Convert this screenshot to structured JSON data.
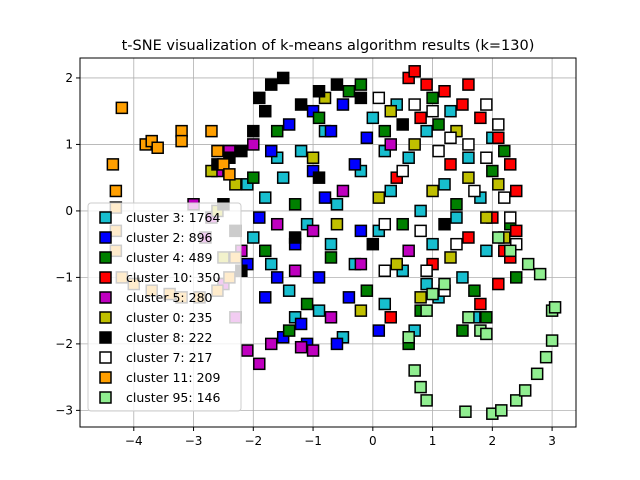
{
  "chart_data": {
    "type": "scatter",
    "title": "t-SNE visualization of k-means algorithm results (k=130)",
    "xlabel": "",
    "ylabel": "",
    "xlim": [
      -4.9,
      3.4
    ],
    "ylim": [
      -3.25,
      2.3
    ],
    "xticks": [
      -4,
      -3,
      -2,
      -1,
      0,
      1,
      2,
      3
    ],
    "yticks": [
      -3,
      -2,
      -1,
      0,
      1,
      2
    ],
    "grid": true,
    "marker": "square",
    "legend_position": "lower-left",
    "series": [
      {
        "name": "cluster 3: 1764",
        "color": "#17becf",
        "points": [
          [
            -2.0,
            -0.4
          ],
          [
            -1.8,
            0.2
          ],
          [
            -1.7,
            -0.8
          ],
          [
            -1.5,
            0.5
          ],
          [
            -1.4,
            -1.2
          ],
          [
            -1.2,
            0.9
          ],
          [
            -1.1,
            -0.2
          ],
          [
            -0.9,
            -1.5
          ],
          [
            -0.8,
            1.2
          ],
          [
            -0.6,
            0.1
          ],
          [
            -0.5,
            -1.9
          ],
          [
            -0.3,
            -0.8
          ],
          [
            -0.2,
            0.6
          ],
          [
            0.0,
            1.4
          ],
          [
            0.1,
            -0.3
          ],
          [
            0.2,
            -1.4
          ],
          [
            0.3,
            0.3
          ],
          [
            0.4,
            1.6
          ],
          [
            0.5,
            -0.9
          ],
          [
            0.6,
            0.8
          ],
          [
            0.7,
            -1.8
          ],
          [
            0.8,
            0.0
          ],
          [
            0.9,
            1.2
          ],
          [
            1.0,
            -0.5
          ],
          [
            1.1,
            -1.3
          ],
          [
            1.2,
            0.4
          ],
          [
            1.3,
            1.5
          ],
          [
            1.4,
            -0.1
          ],
          [
            1.5,
            -1.0
          ],
          [
            1.6,
            0.8
          ],
          [
            1.7,
            -1.6
          ],
          [
            1.8,
            0.2
          ],
          [
            1.9,
            -0.6
          ],
          [
            2.0,
            1.1
          ],
          [
            -1.3,
            -1.6
          ],
          [
            -1.6,
            0.8
          ],
          [
            -0.7,
            -0.5
          ],
          [
            0.2,
            0.9
          ],
          [
            0.9,
            -1.1
          ],
          [
            -2.1,
            0.4
          ]
        ]
      },
      {
        "name": "cluster 2: 896",
        "color": "#0000ff",
        "points": [
          [
            -1.9,
            -0.1
          ],
          [
            -1.7,
            0.9
          ],
          [
            -1.6,
            -1.0
          ],
          [
            -1.4,
            1.3
          ],
          [
            -1.3,
            -0.5
          ],
          [
            -1.2,
            -1.7
          ],
          [
            -1.0,
            1.5
          ],
          [
            -0.9,
            -1.0
          ],
          [
            -0.8,
            0.2
          ],
          [
            -0.6,
            -2.0
          ],
          [
            -0.5,
            1.6
          ],
          [
            -0.4,
            -1.3
          ],
          [
            -0.2,
            -0.3
          ],
          [
            -0.1,
            1.1
          ],
          [
            0.1,
            -1.8
          ],
          [
            -1.8,
            -1.3
          ],
          [
            -1.1,
            -2.0
          ],
          [
            -1.5,
            -1.9
          ],
          [
            -2.1,
            -0.8
          ],
          [
            -0.3,
            0.7
          ],
          [
            -0.7,
            1.2
          ],
          [
            -1.0,
            0.6
          ]
        ]
      },
      {
        "name": "cluster 4: 489",
        "color": "#008000",
        "points": [
          [
            -2.0,
            0.5
          ],
          [
            -1.8,
            -0.6
          ],
          [
            -1.6,
            1.2
          ],
          [
            -1.3,
            0.1
          ],
          [
            -1.1,
            -1.4
          ],
          [
            -0.9,
            1.4
          ],
          [
            -0.7,
            -0.7
          ],
          [
            -0.4,
            1.8
          ],
          [
            -0.1,
            -1.2
          ],
          [
            0.2,
            1.2
          ],
          [
            0.5,
            -0.2
          ],
          [
            0.8,
            -1.5
          ],
          [
            1.1,
            1.3
          ],
          [
            1.4,
            0.1
          ],
          [
            1.7,
            -1.2
          ],
          [
            2.0,
            0.6
          ],
          [
            2.3,
            -0.2
          ],
          [
            2.4,
            -1.0
          ],
          [
            1.9,
            -1.6
          ],
          [
            1.5,
            -1.8
          ],
          [
            0.6,
            -2.0
          ],
          [
            -0.2,
            1.9
          ],
          [
            1.0,
            1.7
          ],
          [
            2.2,
            0.9
          ],
          [
            -1.4,
            -1.8
          ]
        ]
      },
      {
        "name": "cluster 10: 350",
        "color": "#ff0000",
        "points": [
          [
            0.6,
            2.0
          ],
          [
            0.9,
            1.9
          ],
          [
            1.2,
            1.8
          ],
          [
            1.5,
            1.6
          ],
          [
            1.8,
            1.4
          ],
          [
            2.1,
            1.1
          ],
          [
            2.3,
            0.7
          ],
          [
            2.4,
            0.3
          ],
          [
            2.4,
            -0.3
          ],
          [
            2.3,
            -0.7
          ],
          [
            2.1,
            -1.1
          ],
          [
            1.8,
            -1.4
          ],
          [
            0.8,
            1.4
          ],
          [
            1.3,
            0.7
          ],
          [
            1.6,
            -0.4
          ],
          [
            2.0,
            -0.1
          ],
          [
            0.4,
            0.5
          ],
          [
            1.0,
            -0.8
          ],
          [
            0.7,
            2.1
          ],
          [
            1.6,
            1.9
          ],
          [
            2.2,
            -0.6
          ],
          [
            0.3,
            -1.6
          ]
        ]
      },
      {
        "name": "cluster 5: 280",
        "color": "#bf00bf",
        "points": [
          [
            -3.0,
            0.1
          ],
          [
            -2.8,
            -0.4
          ],
          [
            -2.6,
            0.6
          ],
          [
            -2.5,
            -1.1
          ],
          [
            -2.4,
            0.9
          ],
          [
            -2.3,
            -1.6
          ],
          [
            -2.2,
            -0.6
          ],
          [
            -2.1,
            -2.1
          ],
          [
            -1.9,
            -2.3
          ],
          [
            -1.7,
            -2.0
          ],
          [
            -1.2,
            -2.05
          ],
          [
            -1.0,
            -2.1
          ],
          [
            -1.3,
            -0.9
          ],
          [
            -1.0,
            -0.3
          ],
          [
            -0.7,
            -1.6
          ],
          [
            -0.5,
            0.3
          ],
          [
            -0.2,
            -0.8
          ],
          [
            0.3,
            1.0
          ],
          [
            0.6,
            -0.6
          ],
          [
            -2.0,
            1.0
          ],
          [
            -2.7,
            -0.1
          ],
          [
            -1.6,
            -0.2
          ]
        ]
      },
      {
        "name": "cluster 0: 235",
        "color": "#bfbf00",
        "points": [
          [
            -2.7,
            0.6
          ],
          [
            -2.6,
            0.0
          ],
          [
            -2.5,
            -0.7
          ],
          [
            -2.3,
            0.4
          ],
          [
            -1.0,
            0.8
          ],
          [
            -0.6,
            -0.2
          ],
          [
            -0.2,
            -1.5
          ],
          [
            0.1,
            0.2
          ],
          [
            0.4,
            -0.8
          ],
          [
            0.7,
            1.0
          ],
          [
            1.0,
            0.3
          ],
          [
            1.3,
            -0.7
          ],
          [
            1.6,
            0.5
          ],
          [
            1.9,
            -0.1
          ],
          [
            2.1,
            0.4
          ],
          [
            2.2,
            -0.4
          ],
          [
            1.4,
            1.2
          ],
          [
            0.8,
            -1.3
          ],
          [
            -0.8,
            1.7
          ],
          [
            0.3,
            1.5
          ]
        ]
      },
      {
        "name": "cluster 8: 222",
        "color": "#000000",
        "points": [
          [
            -2.0,
            1.2
          ],
          [
            -1.8,
            1.5
          ],
          [
            -1.7,
            1.9
          ],
          [
            -1.5,
            2.0
          ],
          [
            -1.2,
            1.6
          ],
          [
            -0.9,
            1.8
          ],
          [
            -0.6,
            1.9
          ],
          [
            -0.2,
            1.7
          ],
          [
            -2.2,
            0.9
          ],
          [
            -2.4,
            0.8
          ],
          [
            -2.6,
            0.7
          ],
          [
            -2.5,
            0.1
          ],
          [
            -2.3,
            -0.3
          ],
          [
            -2.2,
            -0.9
          ],
          [
            -1.3,
            -0.4
          ],
          [
            -0.9,
            0.5
          ],
          [
            0.0,
            -0.5
          ],
          [
            0.5,
            1.3
          ],
          [
            1.2,
            -0.2
          ],
          [
            -1.9,
            1.7
          ]
        ]
      },
      {
        "name": "cluster 7: 217",
        "color": "#ffffff",
        "points": [
          [
            0.7,
            1.6
          ],
          [
            1.0,
            1.5
          ],
          [
            1.3,
            1.1
          ],
          [
            1.6,
            1.0
          ],
          [
            1.9,
            0.8
          ],
          [
            2.2,
            0.2
          ],
          [
            2.3,
            -0.1
          ],
          [
            2.4,
            -0.5
          ],
          [
            0.2,
            -0.2
          ],
          [
            0.5,
            0.6
          ],
          [
            0.8,
            -0.3
          ],
          [
            1.1,
            0.9
          ],
          [
            1.4,
            -0.5
          ],
          [
            1.7,
            0.3
          ],
          [
            1.2,
            -1.2
          ],
          [
            0.9,
            -0.9
          ],
          [
            0.2,
            -0.9
          ],
          [
            0.1,
            1.7
          ],
          [
            2.1,
            1.3
          ],
          [
            1.9,
            1.6
          ]
        ]
      },
      {
        "name": "cluster 11: 209",
        "color": "#ff9f00",
        "points": [
          [
            -4.2,
            1.55
          ],
          [
            -3.8,
            1.0
          ],
          [
            -3.7,
            1.05
          ],
          [
            -3.6,
            0.95
          ],
          [
            -3.2,
            1.2
          ],
          [
            -3.2,
            1.05
          ],
          [
            -2.7,
            1.2
          ],
          [
            -2.6,
            0.9
          ],
          [
            -2.5,
            0.7
          ],
          [
            -2.4,
            0.55
          ],
          [
            -4.35,
            0.7
          ],
          [
            -4.3,
            0.3
          ],
          [
            -4.3,
            0.05
          ],
          [
            -4.3,
            -0.3
          ],
          [
            -4.3,
            -0.6
          ],
          [
            -4.2,
            -1.0
          ],
          [
            -4.0,
            -1.1
          ],
          [
            -3.7,
            -1.2
          ],
          [
            -3.4,
            -1.25
          ],
          [
            -3.2,
            -1.3
          ],
          [
            -2.9,
            -1.3
          ],
          [
            -2.6,
            -1.2
          ],
          [
            -2.4,
            -1.0
          ],
          [
            -2.3,
            -0.7
          ]
        ]
      },
      {
        "name": "cluster 95: 146",
        "color": "#90ee90",
        "points": [
          [
            0.6,
            -1.9
          ],
          [
            0.7,
            -2.4
          ],
          [
            0.8,
            -2.65
          ],
          [
            0.9,
            -2.85
          ],
          [
            1.55,
            -3.02
          ],
          [
            2.0,
            -3.05
          ],
          [
            2.15,
            -3.0
          ],
          [
            2.4,
            -2.85
          ],
          [
            2.55,
            -2.7
          ],
          [
            2.75,
            -2.45
          ],
          [
            2.9,
            -2.2
          ],
          [
            3.0,
            -1.95
          ],
          [
            3.0,
            -1.5
          ],
          [
            2.8,
            -0.95
          ],
          [
            2.6,
            -0.8
          ],
          [
            2.3,
            -0.6
          ],
          [
            2.1,
            -0.4
          ],
          [
            1.8,
            -1.8
          ],
          [
            1.9,
            -1.85
          ],
          [
            1.2,
            -1.1
          ],
          [
            0.9,
            -1.5
          ],
          [
            1.6,
            -1.6
          ],
          [
            1.0,
            -1.25
          ],
          [
            3.05,
            -1.45
          ]
        ]
      }
    ]
  }
}
